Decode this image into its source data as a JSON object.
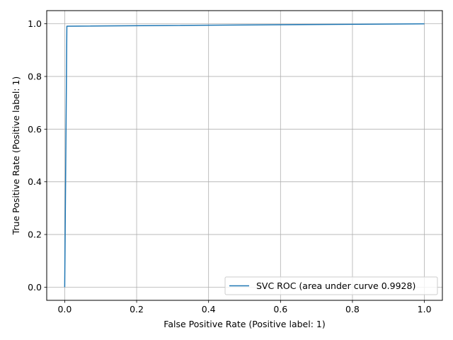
{
  "chart_data": {
    "type": "line",
    "title": "",
    "xlabel": "False Positive Rate (Positive label: 1)",
    "ylabel": "True Positive Rate (Positive label: 1)",
    "xlim": [
      -0.05,
      1.05
    ],
    "ylim": [
      -0.05,
      1.05
    ],
    "xticks": [
      0.0,
      0.2,
      0.4,
      0.6,
      0.8,
      1.0
    ],
    "yticks": [
      0.0,
      0.2,
      0.4,
      0.6,
      0.8,
      1.0
    ],
    "xtick_labels": [
      "0.0",
      "0.2",
      "0.4",
      "0.6",
      "0.8",
      "1.0"
    ],
    "ytick_labels": [
      "0.0",
      "0.2",
      "0.4",
      "0.6",
      "0.8",
      "1.0"
    ],
    "grid": true,
    "legend_position": "lower-right",
    "series": [
      {
        "name": "SVC ROC (area under curve 0.9928)",
        "color": "#1f77b4",
        "x": [
          0.0,
          0.0,
          0.006,
          0.006,
          1.0
        ],
        "y": [
          0.0,
          0.0,
          0.99,
          0.991,
          1.0
        ]
      }
    ]
  }
}
